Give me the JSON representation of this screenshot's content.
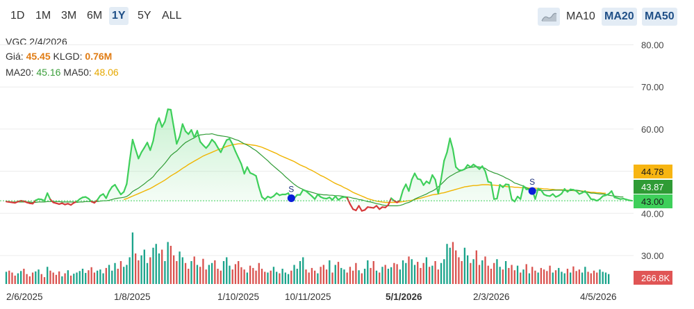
{
  "toolbar": {
    "ranges": [
      "1D",
      "1M",
      "3M",
      "6M",
      "1Y",
      "5Y",
      "ALL"
    ],
    "active_range": "1Y",
    "area_toggle_icon": "area-chart-icon",
    "ma_buttons": [
      "MA10",
      "MA20",
      "MA50"
    ],
    "active_ma": [
      "MA20",
      "MA50"
    ]
  },
  "info": {
    "ticker_date": "VGC 2/4/2026",
    "price_label": "Giá:",
    "price_value": "45.45",
    "volume_label": "KLGD:",
    "volume_value": "0.76M",
    "ma20_label": "MA20:",
    "ma20_value": "45.16",
    "ma50_label": "MA50:",
    "ma50_value": "48.06"
  },
  "badges": {
    "ma50": "44.78",
    "ma20": "43.87",
    "price": "43.00",
    "volume": "266.8K"
  },
  "colors": {
    "price_up": "#3ecf5a",
    "price_down": "#d6393a",
    "ma20": "#2f9b35",
    "ma50": "#f0b400",
    "vol_up": "#1aa38a",
    "vol_down": "#d9534f",
    "signal": "#0a1ed8",
    "badge_ma50": "#f7b512",
    "badge_ma20": "#2f9b35",
    "badge_price": "#3ecf5a",
    "badge_volume": "#e05555"
  },
  "chart_data": {
    "type": "line",
    "y_ticks": [
      "80.00",
      "70.00",
      "60.00",
      "43.00",
      "40.00",
      "30.00"
    ],
    "x_labels": [
      "2/6/2025",
      "1/8/2025",
      "1/10/2025",
      "10/11/2025",
      "5/1/2026",
      "2/3/2026",
      "4/5/2026"
    ],
    "bold_x_label": "5/1/2026",
    "reference_price": 43.0,
    "signals": [
      {
        "label": "S",
        "date_index": 97,
        "value": 43.6
      },
      {
        "label": "S",
        "date_index": 179,
        "value": 45.3
      }
    ],
    "price": [
      42.8,
      42.7,
      42.6,
      42.5,
      42.8,
      43.0,
      42.9,
      42.6,
      42.4,
      42.3,
      43.1,
      43.4,
      43.3,
      43.0,
      44.8,
      43.3,
      42.6,
      42.4,
      42.2,
      42.4,
      42.1,
      42.3,
      42.0,
      42.5,
      42.8,
      43.4,
      43.8,
      43.9,
      43.5,
      42.8,
      42.5,
      43.2,
      44.2,
      44.6,
      43.6,
      45.2,
      46.3,
      46.8,
      45.6,
      44.5,
      45.1,
      47.0,
      52.5,
      57.5,
      55.2,
      53.0,
      54.5,
      55.6,
      56.8,
      55.0,
      57.2,
      61.0,
      62.6,
      60.5,
      61.8,
      64.7,
      64.6,
      60.5,
      56.5,
      58.2,
      61.2,
      59.5,
      58.8,
      59.8,
      58.0,
      59.6,
      57.0,
      56.2,
      55.5,
      56.3,
      57.5,
      56.8,
      55.6,
      54.5,
      56.0,
      57.4,
      57.7,
      56.4,
      54.7,
      53.2,
      51.7,
      49.4,
      51.0,
      49.6,
      49.3,
      48.9,
      46.2,
      43.9,
      43.3,
      44.0,
      43.7,
      44.1,
      44.8,
      44.3,
      44.5,
      44.5,
      44.8,
      43.2,
      43.6,
      44.4,
      44.4,
      45.6,
      45.3,
      44.7,
      44.1,
      43.4,
      44.5,
      43.9,
      43.6,
      43.5,
      43.8,
      43.2,
      44.1,
      43.2,
      43.7,
      43.9,
      43.7,
      42.2,
      41.0,
      40.7,
      41.8,
      40.6,
      40.8,
      41.5,
      41.4,
      41.3,
      41.8,
      41.0,
      41.5,
      41.4,
      42.0,
      43.6,
      43.0,
      42.6,
      43.1,
      45.5,
      46.9,
      45.3,
      48.0,
      49.5,
      48.2,
      48.0,
      46.7,
      47.6,
      47.1,
      49.1,
      48.0,
      44.7,
      48.2,
      52.5,
      54.5,
      57.8,
      55.2,
      51.0,
      50.3,
      50.2,
      50.5,
      51.5,
      51.0,
      51.6,
      51.1,
      50.5,
      51.2,
      50.0,
      47.5,
      47.3,
      43.4,
      43.5,
      46.8,
      46.2,
      46.9,
      46.8,
      43.4,
      42.8,
      44.0,
      43.4,
      46.5,
      45.7,
      45.7,
      45.6,
      43.4,
      45.9,
      45.5,
      44.5,
      44.2,
      44.1,
      44.6,
      43.9,
      44.2,
      44.7,
      45.8,
      45.1,
      45.7,
      45.6,
      45.3,
      44.6,
      44.9,
      45.3,
      44.4,
      43.4,
      43.3,
      43.0,
      43.4,
      44.1,
      44.3,
      44.6,
      45.3,
      43.8,
      43.6,
      43.4,
      43.5,
      43.3,
      43.1,
      43.0
    ],
    "ma20": [
      42.8,
      42.8,
      42.7,
      42.7,
      42.7,
      42.7,
      42.7,
      42.7,
      42.7,
      42.6,
      42.6,
      42.7,
      42.7,
      42.7,
      42.8,
      42.8,
      42.8,
      42.8,
      42.8,
      42.7,
      42.7,
      42.7,
      42.7,
      42.7,
      42.6,
      42.7,
      42.7,
      42.8,
      42.8,
      42.8,
      42.8,
      42.8,
      42.9,
      43.0,
      43.0,
      43.1,
      43.3,
      43.5,
      43.6,
      43.7,
      43.8,
      44.0,
      44.5,
      45.2,
      45.6,
      46.0,
      46.5,
      47.0,
      47.6,
      48.1,
      48.7,
      49.6,
      50.4,
      51.1,
      51.9,
      52.8,
      53.7,
      54.3,
      54.8,
      55.5,
      56.2,
      56.8,
      57.2,
      57.6,
      57.9,
      58.4,
      58.6,
      58.7,
      58.8,
      58.8,
      58.9,
      58.7,
      58.5,
      58.4,
      58.3,
      58.2,
      58.0,
      57.8,
      57.5,
      57.3,
      56.9,
      56.5,
      56.2,
      55.8,
      55.3,
      54.9,
      54.3,
      53.7,
      53.1,
      52.5,
      51.8,
      51.2,
      50.6,
      50.0,
      49.4,
      48.7,
      48.1,
      47.5,
      46.9,
      46.4,
      46.0,
      45.7,
      45.4,
      45.2,
      45.0,
      44.8,
      44.6,
      44.5,
      44.4,
      44.4,
      44.3,
      44.3,
      44.2,
      44.2,
      44.1,
      44.0,
      43.9,
      43.8,
      43.6,
      43.5,
      43.3,
      43.2,
      43.0,
      42.8,
      42.7,
      42.5,
      42.3,
      42.2,
      42.0,
      41.9,
      41.8,
      41.8,
      41.8,
      41.8,
      41.9,
      42.1,
      42.4,
      42.6,
      42.9,
      43.4,
      43.7,
      44.0,
      44.3,
      44.6,
      45.0,
      45.3,
      45.7,
      46.3,
      46.9,
      47.6,
      48.3,
      48.8,
      49.2,
      49.6,
      49.9,
      50.2,
      50.5,
      50.8,
      50.9,
      51.0,
      51.1,
      51.0,
      50.9,
      50.7,
      50.2,
      49.9,
      49.6,
      49.4,
      49.1,
      48.8,
      48.4,
      48.1,
      47.7,
      47.2,
      47.0,
      46.7,
      46.5,
      46.1,
      45.8,
      45.7,
      45.6,
      45.5,
      45.4,
      45.4,
      45.4,
      45.4,
      45.5,
      45.5,
      45.5,
      45.5,
      45.4,
      45.4,
      45.4,
      45.5,
      45.5,
      45.4,
      45.2,
      45.0,
      45.0,
      44.8,
      44.8,
      44.7,
      44.6,
      44.6,
      44.5,
      44.3,
      44.2,
      44.1,
      44.0,
      43.9,
      43.9
    ],
    "ma50": [
      null,
      null,
      null,
      null,
      null,
      null,
      null,
      null,
      null,
      null,
      null,
      null,
      null,
      null,
      null,
      null,
      null,
      null,
      null,
      null,
      null,
      null,
      null,
      null,
      null,
      null,
      null,
      null,
      null,
      null,
      null,
      null,
      null,
      null,
      null,
      null,
      null,
      null,
      null,
      null,
      43.3,
      43.5,
      43.8,
      44.1,
      44.4,
      44.7,
      45.0,
      45.3,
      45.6,
      45.9,
      46.3,
      46.7,
      47.1,
      47.5,
      47.9,
      48.4,
      48.9,
      49.3,
      49.7,
      50.2,
      50.7,
      51.1,
      51.6,
      52.0,
      52.4,
      52.8,
      53.2,
      53.6,
      53.9,
      54.2,
      54.5,
      54.8,
      55.1,
      55.3,
      55.6,
      55.9,
      56.1,
      56.3,
      56.4,
      56.5,
      56.5,
      56.5,
      56.4,
      56.3,
      56.2,
      56.1,
      55.9,
      55.7,
      55.4,
      55.1,
      54.8,
      54.5,
      54.2,
      53.8,
      53.5,
      53.2,
      52.9,
      52.6,
      52.3,
      51.9,
      51.5,
      51.2,
      50.9,
      50.5,
      50.2,
      49.8,
      49.4,
      49.0,
      48.7,
      48.3,
      47.9,
      47.5,
      47.1,
      46.8,
      46.5,
      46.1,
      45.8,
      45.4,
      45.0,
      44.7,
      44.4,
      44.1,
      43.8,
      43.5,
      43.3,
      43.1,
      42.9,
      42.8,
      42.7,
      42.6,
      42.6,
      42.6,
      42.6,
      42.6,
      42.7,
      42.8,
      42.9,
      43.0,
      43.1,
      43.3,
      43.5,
      43.6,
      43.8,
      44.0,
      44.2,
      44.4,
      44.5,
      44.6,
      44.8,
      44.9,
      45.1,
      45.3,
      45.5,
      45.7,
      45.9,
      46.1,
      46.3,
      46.4,
      46.5,
      46.6,
      46.6,
      46.7,
      46.8,
      46.8,
      46.8,
      46.7,
      46.7,
      46.6,
      46.6,
      46.5,
      46.4,
      46.3,
      46.3,
      46.2,
      46.2,
      46.1,
      46.1,
      46.1,
      46.0,
      46.0,
      46.0,
      45.9,
      45.9,
      45.8,
      45.8,
      45.7,
      45.7,
      45.6,
      45.6,
      45.6,
      45.6,
      45.5,
      45.5,
      45.4,
      45.4,
      45.3,
      45.3,
      45.2,
      45.1,
      45.0,
      45.0,
      44.9,
      44.9,
      44.8,
      44.8
    ],
    "volume": [
      0.32,
      0.35,
      0.3,
      0.22,
      0.28,
      0.34,
      0.4,
      0.26,
      0.2,
      0.3,
      0.33,
      0.38,
      0.26,
      0.18,
      0.45,
      0.35,
      0.3,
      0.24,
      0.33,
      0.2,
      0.28,
      0.36,
      0.22,
      0.27,
      0.3,
      0.34,
      0.4,
      0.29,
      0.36,
      0.44,
      0.3,
      0.35,
      0.38,
      0.28,
      0.42,
      0.5,
      0.35,
      0.55,
      0.4,
      0.6,
      0.45,
      0.5,
      0.7,
      1.35,
      0.8,
      0.62,
      0.75,
      0.9,
      0.55,
      0.7,
      0.95,
      1.05,
      0.8,
      0.9,
      0.6,
      1.1,
      1.0,
      0.75,
      0.6,
      0.85,
      0.7,
      0.55,
      0.4,
      0.6,
      0.72,
      0.5,
      0.45,
      0.66,
      0.38,
      0.5,
      0.55,
      0.62,
      0.4,
      0.35,
      0.6,
      0.7,
      0.48,
      0.38,
      0.52,
      0.6,
      0.44,
      0.38,
      0.3,
      0.48,
      0.42,
      0.35,
      0.55,
      0.4,
      0.32,
      0.3,
      0.35,
      0.45,
      0.32,
      0.28,
      0.4,
      0.3,
      0.26,
      0.35,
      0.5,
      0.4,
      0.6,
      0.7,
      0.38,
      0.3,
      0.42,
      0.35,
      0.28,
      0.45,
      0.5,
      0.38,
      0.62,
      0.3,
      0.5,
      0.58,
      0.42,
      0.38,
      0.3,
      0.45,
      0.35,
      0.55,
      0.36,
      0.28,
      0.4,
      0.62,
      0.42,
      0.6,
      0.35,
      0.3,
      0.45,
      0.5,
      0.4,
      0.44,
      0.55,
      0.52,
      0.38,
      0.62,
      0.55,
      0.72,
      0.65,
      0.5,
      0.58,
      0.42,
      0.55,
      0.7,
      0.45,
      0.48,
      0.6,
      0.38,
      0.55,
      0.65,
      1.05,
      0.95,
      1.1,
      0.88,
      0.7,
      0.6,
      0.95,
      0.75,
      0.55,
      0.65,
      0.88,
      0.5,
      0.62,
      0.72,
      0.48,
      0.4,
      0.55,
      0.65,
      0.45,
      0.38,
      0.6,
      0.42,
      0.5,
      0.36,
      0.48,
      0.3,
      0.38,
      0.52,
      0.28,
      0.45,
      0.35,
      0.3,
      0.42,
      0.38,
      0.34,
      0.48,
      0.3,
      0.36,
      0.42,
      0.32,
      0.28,
      0.4,
      0.3,
      0.46,
      0.34,
      0.38,
      0.3,
      0.45,
      0.32,
      0.28,
      0.35,
      0.3,
      0.38,
      0.32,
      0.3,
      0.26
    ]
  }
}
